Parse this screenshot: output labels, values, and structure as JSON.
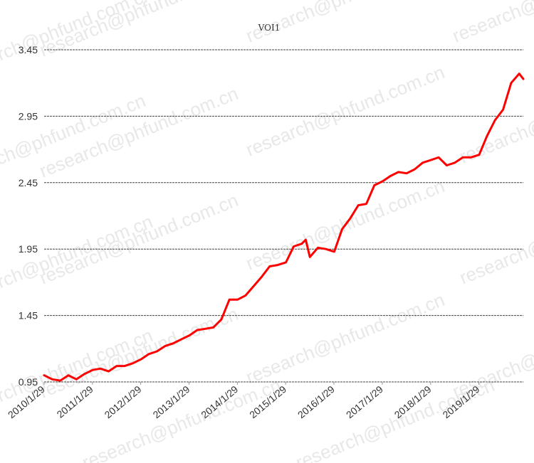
{
  "watermark": "research@phfund.com.cn",
  "chart_data": {
    "type": "line",
    "title": "VOI1",
    "xlabel": "",
    "ylabel": "",
    "ylim": [
      0.95,
      3.45
    ],
    "y_ticks": [
      "0.95",
      "1.45",
      "1.95",
      "2.45",
      "2.95",
      "3.45"
    ],
    "x_ticks": [
      "2010/1/29",
      "2011/1/29",
      "2012/1/29",
      "2013/1/29",
      "2014/1/29",
      "2015/1/29",
      "2016/1/29",
      "2017/1/29",
      "2018/1/29",
      "2019/1/29"
    ],
    "grid": "horizontal dashed",
    "legend": "none",
    "series": [
      {
        "color": "#ff0000",
        "x": [
          "2010/1/29",
          "2010/3/31",
          "2010/5/31",
          "2010/7/31",
          "2010/9/30",
          "2010/11/30",
          "2011/1/31",
          "2011/3/31",
          "2011/5/31",
          "2011/7/31",
          "2011/9/30",
          "2011/11/30",
          "2012/1/31",
          "2012/3/31",
          "2012/5/31",
          "2012/7/31",
          "2012/9/30",
          "2012/11/30",
          "2013/1/31",
          "2013/3/31",
          "2013/5/31",
          "2013/7/31",
          "2013/9/30",
          "2013/11/30",
          "2014/1/31",
          "2014/3/31",
          "2014/5/31",
          "2014/7/31",
          "2014/9/30",
          "2014/11/30",
          "2015/1/31",
          "2015/3/31",
          "2015/5/31",
          "2015/6/30",
          "2015/7/31",
          "2015/9/30",
          "2015/11/30",
          "2016/1/31",
          "2016/3/31",
          "2016/5/31",
          "2016/7/31",
          "2016/9/30",
          "2016/11/30",
          "2017/1/31",
          "2017/3/31",
          "2017/5/31",
          "2017/7/31",
          "2017/9/30",
          "2017/11/30",
          "2018/1/31",
          "2018/3/31",
          "2018/5/31",
          "2018/7/31",
          "2018/9/30",
          "2018/11/30",
          "2019/1/31",
          "2019/3/31",
          "2019/5/31",
          "2019/7/31",
          "2019/9/30",
          "2019/11/30",
          "2019/12/31"
        ],
        "values": [
          1.0,
          0.97,
          0.96,
          1.0,
          0.97,
          1.01,
          1.04,
          1.05,
          1.03,
          1.07,
          1.07,
          1.09,
          1.12,
          1.16,
          1.18,
          1.22,
          1.24,
          1.27,
          1.3,
          1.34,
          1.35,
          1.36,
          1.42,
          1.57,
          1.57,
          1.6,
          1.67,
          1.74,
          1.82,
          1.83,
          1.85,
          1.97,
          1.99,
          2.02,
          1.89,
          1.96,
          1.95,
          1.93,
          2.1,
          2.18,
          2.28,
          2.29,
          2.43,
          2.46,
          2.5,
          2.53,
          2.52,
          2.55,
          2.6,
          2.62,
          2.64,
          2.58,
          2.6,
          2.64,
          2.64,
          2.66,
          2.8,
          2.92,
          3.0,
          3.2,
          3.27,
          3.23
        ]
      }
    ]
  }
}
